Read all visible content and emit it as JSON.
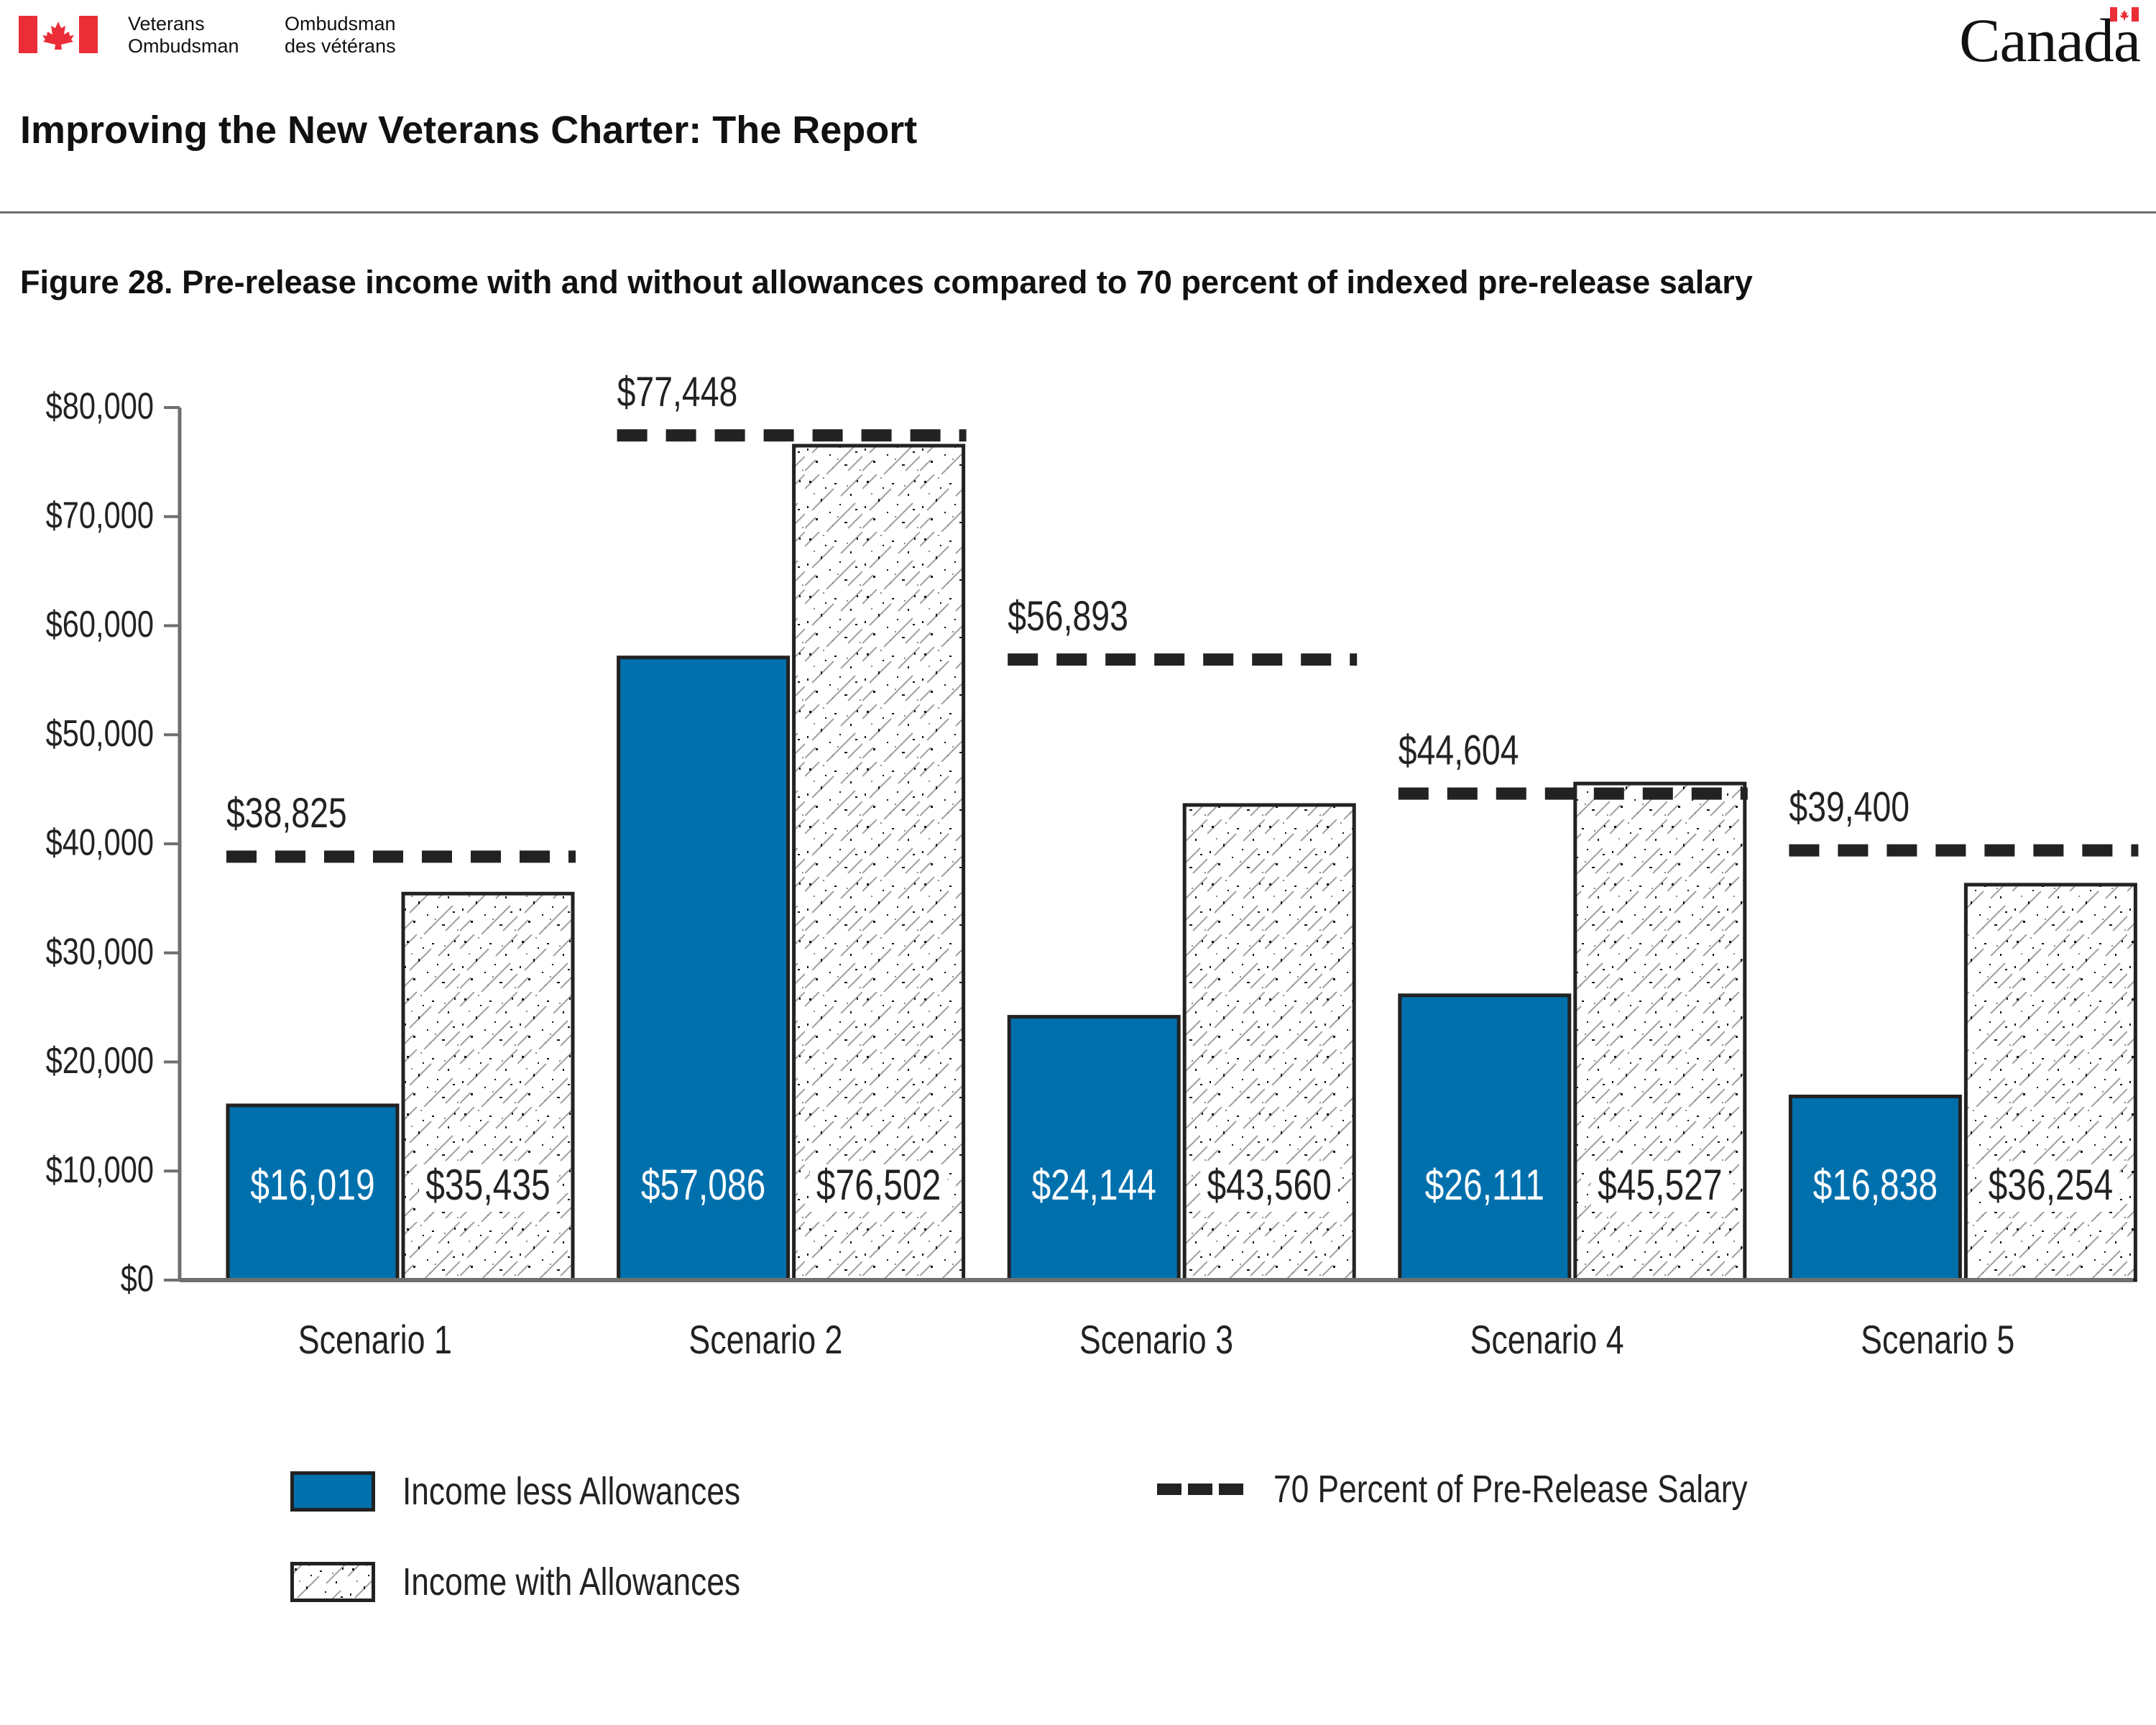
{
  "header": {
    "org_en_line1": "Veterans",
    "org_en_line2": "Ombudsman",
    "org_fr_line1": "Ombudsman",
    "org_fr_line2": "des vétérans",
    "wordmark": "Canada"
  },
  "report_title": "Improving the New Veterans Charter: The Report",
  "figure_title": "Figure 28. Pre-release income with and without allowances compared to 70 percent of indexed pre-release salary",
  "colors": {
    "income_less": "#0070ad",
    "border": "#222222",
    "axis": "#6f6f6f",
    "flag_red": "#eb2d37"
  },
  "chart_data": {
    "type": "bar",
    "categories": [
      "Scenario 1",
      "Scenario 2",
      "Scenario 3",
      "Scenario 4",
      "Scenario 5"
    ],
    "series": [
      {
        "name": "Income less Allowances",
        "values": [
          16019,
          57086,
          24144,
          26111,
          16838
        ],
        "labels": [
          "$16,019",
          "$57,086",
          "$24,144",
          "$26,111",
          "$16,838"
        ]
      },
      {
        "name": "Income with Allowances",
        "values": [
          35435,
          76502,
          43560,
          45527,
          36254
        ],
        "labels": [
          "$35,435",
          "$76,502",
          "$43,560",
          "$45,527",
          "$36,254"
        ]
      }
    ],
    "reference_line": {
      "name": "70 Percent of Pre-Release Salary",
      "values": [
        38825,
        77448,
        56893,
        44604,
        39400
      ],
      "labels": [
        "$38,825",
        "$77,448",
        "$56,893",
        "$44,604",
        "$39,400"
      ]
    },
    "ylim": [
      0,
      80000
    ],
    "yticks": [
      0,
      10000,
      20000,
      30000,
      40000,
      50000,
      60000,
      70000,
      80000
    ],
    "ytick_labels": [
      "$0",
      "$10,000",
      "$20,000",
      "$30,000",
      "$40,000",
      "$50,000",
      "$60,000",
      "$70,000",
      "$80,000"
    ],
    "xlabel": "",
    "ylabel": "",
    "grid": false,
    "legend_position": "bottom"
  },
  "legend": {
    "income_less": "Income less Allowances",
    "income_with": "Income with Allowances",
    "reference": "70 Percent of Pre-Release Salary"
  }
}
